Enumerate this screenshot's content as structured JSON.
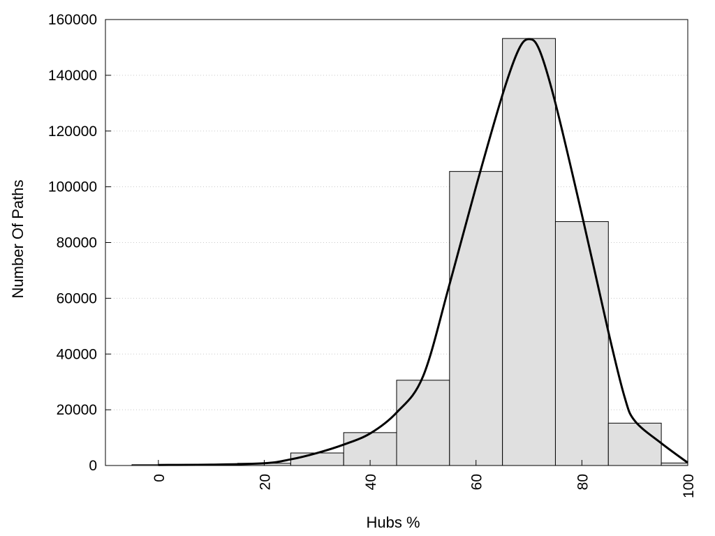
{
  "chart_data": {
    "type": "bar",
    "title": "",
    "xlabel": "Hubs %",
    "ylabel": "Number Of Paths",
    "xlim": [
      -10,
      100
    ],
    "ylim": [
      0,
      160000
    ],
    "xticks": [
      0,
      20,
      40,
      60,
      80,
      100
    ],
    "yticks": [
      0,
      20000,
      40000,
      60000,
      80000,
      100000,
      120000,
      140000,
      160000
    ],
    "grid": "y-dotted",
    "bins": [
      {
        "from": -5,
        "to": 5,
        "value": 300
      },
      {
        "from": 5,
        "to": 15,
        "value": 400
      },
      {
        "from": 15,
        "to": 25,
        "value": 800
      },
      {
        "from": 25,
        "to": 35,
        "value": 4500
      },
      {
        "from": 35,
        "to": 45,
        "value": 11800
      },
      {
        "from": 45,
        "to": 55,
        "value": 30600
      },
      {
        "from": 55,
        "to": 65,
        "value": 105500
      },
      {
        "from": 65,
        "to": 75,
        "value": 153200
      },
      {
        "from": 75,
        "to": 85,
        "value": 87500
      },
      {
        "from": 85,
        "to": 95,
        "value": 15200
      },
      {
        "from": 95,
        "to": 105,
        "value": 900
      }
    ],
    "density_curve": {
      "x": [
        0,
        10,
        20,
        25,
        30,
        35,
        40,
        45,
        50,
        55,
        60,
        65,
        68,
        70,
        72,
        75,
        80,
        85,
        88,
        90,
        95,
        100
      ],
      "y": [
        200,
        300,
        800,
        2200,
        4500,
        7500,
        11500,
        19000,
        32000,
        65000,
        100000,
        133000,
        149000,
        153000,
        149000,
        130000,
        90000,
        48000,
        25000,
        16000,
        8000,
        1000
      ]
    },
    "colors": {
      "bar_fill": "#e0e0e0",
      "bar_stroke": "#000000",
      "curve": "#000000",
      "grid": "#c8c8c8"
    }
  }
}
